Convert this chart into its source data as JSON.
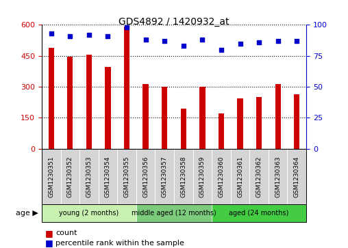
{
  "title": "GDS4892 / 1420932_at",
  "categories": [
    "GSM1230351",
    "GSM1230352",
    "GSM1230353",
    "GSM1230354",
    "GSM1230355",
    "GSM1230356",
    "GSM1230357",
    "GSM1230358",
    "GSM1230359",
    "GSM1230360",
    "GSM1230361",
    "GSM1230362",
    "GSM1230363",
    "GSM1230364"
  ],
  "counts": [
    490,
    445,
    455,
    395,
    590,
    315,
    300,
    195,
    300,
    170,
    245,
    250,
    315,
    265
  ],
  "percentile_ranks": [
    93,
    91,
    92,
    91,
    98,
    88,
    87,
    83,
    88,
    80,
    85,
    86,
    87,
    87
  ],
  "bar_color": "#cc0000",
  "dot_color": "#0000cc",
  "ylim_left": [
    0,
    600
  ],
  "ylim_right": [
    0,
    100
  ],
  "yticks_left": [
    0,
    150,
    300,
    450,
    600
  ],
  "yticks_right": [
    0,
    25,
    50,
    75,
    100
  ],
  "groups": [
    {
      "label": "young (2 months)",
      "start": 0,
      "end": 5,
      "color": "#c8f0b0"
    },
    {
      "label": "middle aged (12 months)",
      "start": 5,
      "end": 9,
      "color": "#7dcc7d"
    },
    {
      "label": "aged (24 months)",
      "start": 9,
      "end": 14,
      "color": "#44cc44"
    }
  ],
  "legend_count_label": "count",
  "legend_percentile_label": "percentile rank within the sample",
  "age_label": "age",
  "tick_box_color": "#d4d4d4",
  "tick_box_border": "#aaaaaa",
  "bar_width": 0.3
}
